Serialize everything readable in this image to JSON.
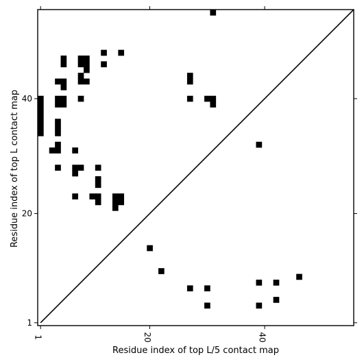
{
  "chart_data": {
    "type": "heatmap",
    "subtype": "binary-contact-map",
    "xlabel": "Residue index of top L/5 contact map",
    "ylabel": "Residue index of top L contact map",
    "x_range": [
      0.5,
      55.5
    ],
    "y_range": [
      0.5,
      55.5
    ],
    "xticks": [
      1,
      20,
      40
    ],
    "yticks": [
      1,
      20,
      40
    ],
    "x_tick_labels_rotated": true,
    "diagonal_line": {
      "from": [
        1,
        1
      ],
      "to": [
        55,
        55
      ],
      "color": "#000000"
    },
    "cell_color": "#000000",
    "background": "#ffffff",
    "contacts": [
      [
        31,
        55
      ],
      [
        12,
        48
      ],
      [
        15,
        48
      ],
      [
        5,
        47
      ],
      [
        8,
        47
      ],
      [
        9,
        47
      ],
      [
        12,
        46
      ],
      [
        5,
        46
      ],
      [
        8,
        46
      ],
      [
        9,
        46
      ],
      [
        9,
        45
      ],
      [
        8,
        44
      ],
      [
        27,
        44
      ],
      [
        4,
        43
      ],
      [
        5,
        43
      ],
      [
        8,
        43
      ],
      [
        9,
        43
      ],
      [
        27,
        43
      ],
      [
        5,
        42
      ],
      [
        1,
        40
      ],
      [
        4,
        40
      ],
      [
        5,
        40
      ],
      [
        8,
        40
      ],
      [
        27,
        40
      ],
      [
        30,
        40
      ],
      [
        31,
        40
      ],
      [
        1,
        39
      ],
      [
        4,
        39
      ],
      [
        5,
        39
      ],
      [
        31,
        39
      ],
      [
        1,
        38
      ],
      [
        1,
        37
      ],
      [
        1,
        36
      ],
      [
        4,
        36
      ],
      [
        1,
        35
      ],
      [
        4,
        35
      ],
      [
        1,
        34
      ],
      [
        4,
        34
      ],
      [
        4,
        32
      ],
      [
        39,
        32
      ],
      [
        3,
        31
      ],
      [
        4,
        31
      ],
      [
        7,
        31
      ],
      [
        4,
        28
      ],
      [
        7,
        28
      ],
      [
        8,
        28
      ],
      [
        11,
        28
      ],
      [
        7,
        27
      ],
      [
        11,
        26
      ],
      [
        11,
        25
      ],
      [
        7,
        23
      ],
      [
        10,
        23
      ],
      [
        11,
        23
      ],
      [
        14,
        23
      ],
      [
        15,
        23
      ],
      [
        11,
        22
      ],
      [
        14,
        22
      ],
      [
        15,
        22
      ],
      [
        14,
        21
      ],
      [
        20,
        14
      ],
      [
        22,
        10
      ],
      [
        46,
        9
      ],
      [
        39,
        8
      ],
      [
        42,
        8
      ],
      [
        27,
        7
      ],
      [
        30,
        7
      ],
      [
        42,
        5
      ],
      [
        30,
        4
      ],
      [
        39,
        4
      ]
    ]
  }
}
